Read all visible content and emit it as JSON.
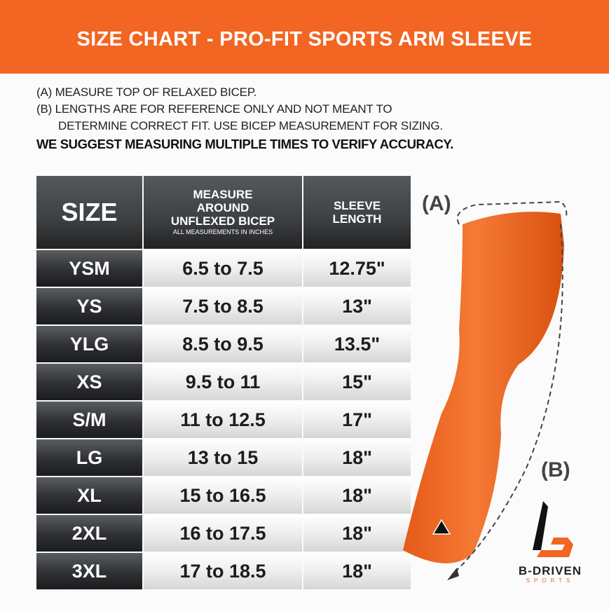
{
  "title": "SIZE CHART - PRO-FIT SPORTS ARM SLEEVE",
  "notes": {
    "a": "(A) MEASURE TOP OF RELAXED BICEP.",
    "b1": "(B) LENGTHS ARE FOR REFERENCE ONLY AND NOT MEANT TO",
    "b2": "DETERMINE CORRECT FIT. USE BICEP MEASUREMENT FOR SIZING.",
    "suggest": "WE SUGGEST MEASURING MULTIPLE TIMES TO VERIFY ACCURACY."
  },
  "table": {
    "headers": {
      "size": "SIZE",
      "bicep": "MEASURE AROUND UNFLEXED BICEP",
      "bicep_note": "ALL MEASUREMENTS IN INCHES",
      "length": "SLEEVE LENGTH"
    },
    "rows": [
      {
        "size": "YSM",
        "bicep": "6.5 to 7.5",
        "length": "12.75\""
      },
      {
        "size": "YS",
        "bicep": "7.5 to 8.5",
        "length": "13\""
      },
      {
        "size": "YLG",
        "bicep": "8.5 to 9.5",
        "length": "13.5\""
      },
      {
        "size": "XS",
        "bicep": "9.5 to 11",
        "length": "15\""
      },
      {
        "size": "S/M",
        "bicep": "11 to 12.5",
        "length": "17\""
      },
      {
        "size": "LG",
        "bicep": "13 to 15",
        "length": "18\""
      },
      {
        "size": "XL",
        "bicep": "15 to 16.5",
        "length": "18\""
      },
      {
        "size": "2XL",
        "bicep": "16 to 17.5",
        "length": "18\""
      },
      {
        "size": "3XL",
        "bicep": "17 to 18.5",
        "length": "18\""
      }
    ]
  },
  "diagram": {
    "label_a": "(A)",
    "label_b": "(B)",
    "sleeve_color": "#f26522"
  },
  "logo": {
    "brand": "B-DRIVEN",
    "sub": "SPORTS"
  },
  "colors": {
    "accent": "#f26522",
    "header_dark": "#3d4043"
  }
}
